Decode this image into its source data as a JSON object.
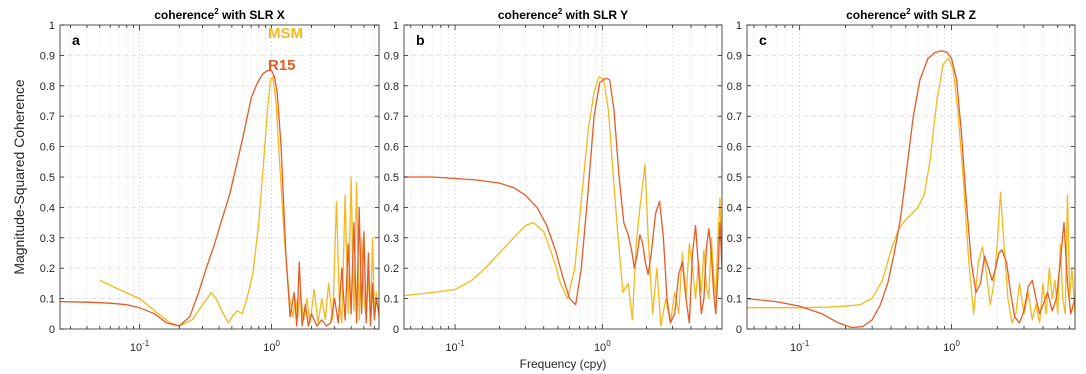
{
  "chart_data": [
    {
      "type": "line",
      "title": "coherence",
      "title_superscript": "2",
      "title_suffix": " with SLR X",
      "panel_label": "a",
      "ylabel": "Magnitude-Squared Coherence",
      "xlabel": "",
      "xscale": "log",
      "xlim": [
        0.025,
        6.5
      ],
      "ylim": [
        0,
        1
      ],
      "grid": true,
      "legend": {
        "placement": "top-right",
        "entries": [
          {
            "name": "MSM",
            "color": "#F5B81E"
          },
          {
            "name": "R15",
            "color": "#E35B26"
          }
        ]
      },
      "x_tick_labels": [
        {
          "value": 0.1,
          "base": "10",
          "exp": "-1"
        },
        {
          "value": 1,
          "base": "10",
          "exp": "0"
        }
      ],
      "y_ticks": [
        0,
        0.1,
        0.2,
        0.3,
        0.4,
        0.5,
        0.6,
        0.7,
        0.8,
        0.9,
        1
      ],
      "y_tick_labels": [
        "0",
        "0.1",
        "0.2",
        "0.3",
        "0.4",
        "0.5",
        "0.6",
        "0.7",
        "0.8",
        "0.9",
        "1"
      ],
      "series": [
        {
          "name": "MSM",
          "color": "#F5B81E",
          "x": [
            0.05,
            0.07,
            0.1,
            0.13,
            0.17,
            0.2,
            0.25,
            0.3,
            0.35,
            0.38,
            0.42,
            0.47,
            0.5,
            0.55,
            0.6,
            0.65,
            0.72,
            0.8,
            0.87,
            0.93,
            0.98,
            1.02,
            1.08,
            1.15,
            1.25,
            1.35,
            1.45,
            1.52,
            1.58,
            1.65,
            1.75,
            1.85,
            1.95,
            2.1,
            2.25,
            2.4,
            2.55,
            2.7,
            2.9,
            3.1,
            3.25,
            3.4,
            3.6,
            3.8,
            4.0,
            4.2,
            4.4,
            4.6,
            4.8,
            5.0,
            5.2,
            5.4,
            5.6,
            5.8,
            6.0,
            6.2,
            6.5
          ],
          "y": [
            0.16,
            0.13,
            0.1,
            0.06,
            0.02,
            0.01,
            0.03,
            0.08,
            0.12,
            0.1,
            0.06,
            0.02,
            0.04,
            0.06,
            0.05,
            0.1,
            0.18,
            0.35,
            0.55,
            0.72,
            0.82,
            0.83,
            0.75,
            0.55,
            0.3,
            0.12,
            0.04,
            0.1,
            0.04,
            0.12,
            0.03,
            0.1,
            0.02,
            0.13,
            0.02,
            0.1,
            0.03,
            0.15,
            0.03,
            0.42,
            0.1,
            0.02,
            0.44,
            0.05,
            0.5,
            0.06,
            0.48,
            0.03,
            0.3,
            0.1,
            0.04,
            0.18,
            0.02,
            0.3,
            0.05,
            0.12,
            0.04
          ]
        },
        {
          "name": "R15",
          "color": "#E35B26",
          "x": [
            0.025,
            0.04,
            0.06,
            0.08,
            0.1,
            0.13,
            0.16,
            0.2,
            0.24,
            0.28,
            0.32,
            0.37,
            0.42,
            0.48,
            0.55,
            0.62,
            0.7,
            0.78,
            0.86,
            0.93,
            1.0,
            1.05,
            1.1,
            1.18,
            1.28,
            1.38,
            1.48,
            1.55,
            1.62,
            1.7,
            1.8,
            1.9,
            2.0,
            2.2,
            2.4,
            2.6,
            2.8,
            3.0,
            3.2,
            3.4,
            3.6,
            3.8,
            4.0,
            4.2,
            4.4,
            4.6,
            4.8,
            5.0,
            5.2,
            5.4,
            5.6,
            5.8,
            6.0,
            6.2,
            6.5
          ],
          "y": [
            0.09,
            0.088,
            0.085,
            0.08,
            0.07,
            0.05,
            0.02,
            0.01,
            0.04,
            0.12,
            0.2,
            0.28,
            0.36,
            0.44,
            0.55,
            0.65,
            0.76,
            0.81,
            0.84,
            0.85,
            0.85,
            0.83,
            0.78,
            0.6,
            0.25,
            0.04,
            0.12,
            0.01,
            0.22,
            0.01,
            0.08,
            0.01,
            0.05,
            0.01,
            0.03,
            0.01,
            0.02,
            0.1,
            0.02,
            0.2,
            0.03,
            0.28,
            0.05,
            0.35,
            0.02,
            0.4,
            0.05,
            0.32,
            0.02,
            0.25,
            0.01,
            0.15,
            0.03,
            0.1,
            0.05
          ]
        }
      ]
    },
    {
      "type": "line",
      "title": "coherence",
      "title_superscript": "2",
      "title_suffix": " with SLR Y",
      "panel_label": "b",
      "ylabel": "",
      "xlabel": "Frequency (cpy)",
      "xscale": "log",
      "xlim": [
        0.045,
        6.5
      ],
      "ylim": [
        0,
        1
      ],
      "grid": true,
      "x_tick_labels": [
        {
          "value": 0.1,
          "base": "10",
          "exp": "-1"
        },
        {
          "value": 1,
          "base": "10",
          "exp": "0"
        }
      ],
      "y_ticks": [
        0,
        0.1,
        0.2,
        0.3,
        0.4,
        0.5,
        0.6,
        0.7,
        0.8,
        0.9,
        1
      ],
      "y_tick_labels": [
        "0",
        "0.1",
        "0.2",
        "0.3",
        "0.4",
        "0.5",
        "0.6",
        "0.7",
        "0.8",
        "0.9",
        "1"
      ],
      "series": [
        {
          "name": "MSM",
          "color": "#F5B81E",
          "x": [
            0.045,
            0.07,
            0.1,
            0.13,
            0.16,
            0.2,
            0.25,
            0.3,
            0.34,
            0.4,
            0.46,
            0.52,
            0.58,
            0.65,
            0.72,
            0.8,
            0.88,
            0.95,
            1.02,
            1.1,
            1.18,
            1.28,
            1.38,
            1.5,
            1.6,
            1.7,
            1.8,
            1.95,
            2.05,
            2.2,
            2.35,
            2.5,
            2.7,
            2.9,
            3.1,
            3.3,
            3.5,
            3.7,
            3.9,
            4.1,
            4.3,
            4.5,
            4.7,
            4.9,
            5.1,
            5.3,
            5.5,
            5.7,
            5.9,
            6.1,
            6.3,
            6.5
          ],
          "y": [
            0.11,
            0.12,
            0.13,
            0.16,
            0.2,
            0.25,
            0.3,
            0.34,
            0.35,
            0.32,
            0.24,
            0.15,
            0.1,
            0.2,
            0.42,
            0.65,
            0.78,
            0.83,
            0.82,
            0.72,
            0.52,
            0.3,
            0.12,
            0.15,
            0.03,
            0.28,
            0.4,
            0.54,
            0.3,
            0.05,
            0.2,
            0.01,
            0.1,
            0.02,
            0.12,
            0.05,
            0.25,
            0.1,
            0.28,
            0.2,
            0.1,
            0.22,
            0.12,
            0.26,
            0.14,
            0.1,
            0.3,
            0.18,
            0.1,
            0.3,
            0.43,
            0.2
          ]
        },
        {
          "name": "R15",
          "color": "#E35B26",
          "x": [
            0.045,
            0.07,
            0.1,
            0.14,
            0.2,
            0.25,
            0.3,
            0.36,
            0.42,
            0.48,
            0.54,
            0.6,
            0.66,
            0.72,
            0.8,
            0.88,
            0.96,
            1.05,
            1.12,
            1.2,
            1.3,
            1.4,
            1.5,
            1.58,
            1.65,
            1.72,
            1.8,
            1.88,
            1.96,
            2.05,
            2.15,
            2.3,
            2.45,
            2.6,
            2.75,
            2.9,
            3.1,
            3.3,
            3.5,
            3.7,
            3.9,
            4.1,
            4.3,
            4.5,
            4.7,
            4.9,
            5.1,
            5.3,
            5.5,
            5.7,
            5.9,
            6.1,
            6.3,
            6.5
          ],
          "y": [
            0.5,
            0.5,
            0.495,
            0.49,
            0.48,
            0.465,
            0.44,
            0.4,
            0.34,
            0.26,
            0.17,
            0.1,
            0.08,
            0.2,
            0.45,
            0.7,
            0.81,
            0.825,
            0.82,
            0.72,
            0.5,
            0.35,
            0.31,
            0.26,
            0.2,
            0.24,
            0.31,
            0.28,
            0.22,
            0.18,
            0.25,
            0.38,
            0.42,
            0.3,
            0.1,
            0.02,
            0.05,
            0.18,
            0.22,
            0.1,
            0.02,
            0.25,
            0.34,
            0.2,
            0.05,
            0.1,
            0.27,
            0.33,
            0.25,
            0.12,
            0.05,
            0.18,
            0.35,
            0.2
          ]
        }
      ]
    },
    {
      "type": "line",
      "title": "coherence",
      "title_superscript": "2",
      "title_suffix": " with SLR Z",
      "panel_label": "c",
      "ylabel": "",
      "xlabel": "",
      "xscale": "log",
      "xlim": [
        0.045,
        6.5
      ],
      "ylim": [
        0,
        1
      ],
      "grid": true,
      "x_tick_labels": [
        {
          "value": 0.1,
          "base": "10",
          "exp": "-1"
        },
        {
          "value": 1,
          "base": "10",
          "exp": "0"
        }
      ],
      "y_ticks": [
        0,
        0.1,
        0.2,
        0.3,
        0.4,
        0.5,
        0.6,
        0.7,
        0.8,
        0.9,
        1
      ],
      "y_tick_labels": [
        "0",
        "0.1",
        "0.2",
        "0.3",
        "0.4",
        "0.5",
        "0.6",
        "0.7",
        "0.8",
        "0.9",
        "1"
      ],
      "series": [
        {
          "name": "MSM",
          "color": "#F5B81E",
          "x": [
            0.045,
            0.07,
            0.1,
            0.15,
            0.2,
            0.25,
            0.3,
            0.35,
            0.4,
            0.45,
            0.5,
            0.55,
            0.6,
            0.66,
            0.72,
            0.8,
            0.88,
            0.95,
            1.02,
            1.1,
            1.2,
            1.3,
            1.4,
            1.5,
            1.6,
            1.7,
            1.8,
            1.9,
            2.0,
            2.1,
            2.2,
            2.35,
            2.5,
            2.65,
            2.8,
            3.0,
            3.2,
            3.4,
            3.6,
            3.8,
            4.0,
            4.2,
            4.4,
            4.6,
            4.8,
            5.0,
            5.2,
            5.4,
            5.6,
            5.8,
            6.0,
            6.2,
            6.5
          ],
          "y": [
            0.07,
            0.07,
            0.07,
            0.072,
            0.075,
            0.08,
            0.1,
            0.16,
            0.26,
            0.33,
            0.36,
            0.38,
            0.4,
            0.44,
            0.55,
            0.75,
            0.87,
            0.89,
            0.86,
            0.72,
            0.48,
            0.22,
            0.05,
            0.22,
            0.27,
            0.18,
            0.08,
            0.15,
            0.28,
            0.45,
            0.3,
            0.1,
            0.02,
            0.05,
            0.15,
            0.05,
            0.12,
            0.03,
            0.08,
            0.02,
            0.15,
            0.05,
            0.2,
            0.1,
            0.16,
            0.05,
            0.28,
            0.1,
            0.05,
            0.44,
            0.1,
            0.2,
            0.05
          ]
        },
        {
          "name": "R15",
          "color": "#E35B26",
          "x": [
            0.045,
            0.07,
            0.1,
            0.14,
            0.18,
            0.22,
            0.26,
            0.3,
            0.34,
            0.38,
            0.42,
            0.46,
            0.5,
            0.56,
            0.62,
            0.7,
            0.78,
            0.86,
            0.93,
            1.0,
            1.08,
            1.16,
            1.25,
            1.35,
            1.45,
            1.55,
            1.65,
            1.75,
            1.85,
            1.95,
            2.05,
            2.15,
            2.3,
            2.45,
            2.6,
            2.8,
            3.0,
            3.2,
            3.4,
            3.6,
            3.8,
            4.0,
            4.3,
            4.6,
            4.9,
            5.2,
            5.5,
            5.8,
            6.1,
            6.5
          ],
          "y": [
            0.1,
            0.09,
            0.075,
            0.05,
            0.02,
            0.005,
            0.008,
            0.03,
            0.08,
            0.15,
            0.25,
            0.36,
            0.5,
            0.7,
            0.82,
            0.89,
            0.91,
            0.915,
            0.91,
            0.89,
            0.82,
            0.65,
            0.42,
            0.22,
            0.12,
            0.15,
            0.24,
            0.2,
            0.16,
            0.2,
            0.25,
            0.26,
            0.22,
            0.12,
            0.04,
            0.02,
            0.06,
            0.14,
            0.16,
            0.1,
            0.05,
            0.08,
            0.12,
            0.06,
            0.1,
            0.22,
            0.35,
            0.15,
            0.05,
            0.1
          ]
        }
      ]
    }
  ]
}
